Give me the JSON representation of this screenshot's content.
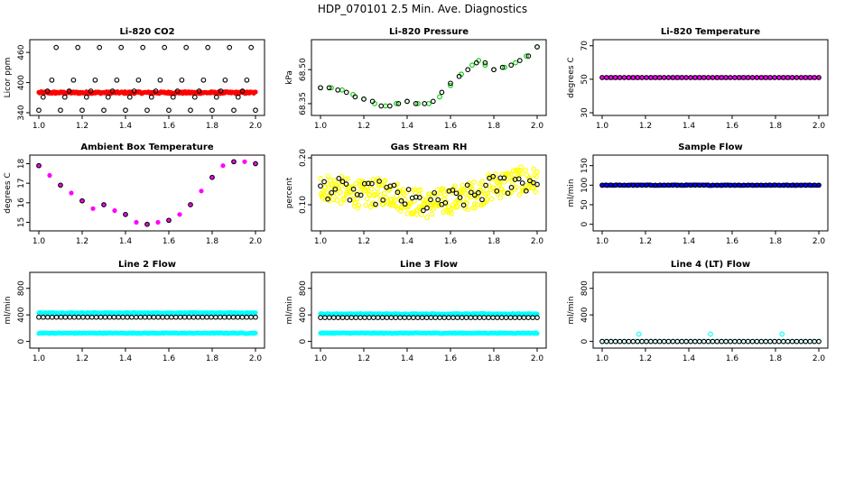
{
  "figure": {
    "title": "HDP_070101  2.5 Min. Ave. Diagnostics",
    "x_tick_labels": [
      "1.0",
      "1.2",
      "1.4",
      "1.6",
      "1.8",
      "2.0"
    ]
  },
  "chart_data": [
    {
      "type": "scatter",
      "title": "Li-820 CO2",
      "ylabel": "Licor ppm",
      "xlim": [
        1.0,
        2.0
      ],
      "ylim": [
        340,
        480
      ],
      "yticks": [
        340,
        400,
        460
      ],
      "grid": false,
      "series": [
        {
          "color": "#ff0000",
          "marker": "filled-circle",
          "baseline": 380,
          "noise": 2,
          "n": 260
        },
        {
          "color": "#000000",
          "marker": "open-circle",
          "x": [
            1.0,
            1.02,
            1.04,
            1.06,
            1.08,
            1.1,
            1.12,
            1.14,
            1.16,
            1.18,
            1.2,
            1.22,
            1.24,
            1.26,
            1.28,
            1.3,
            1.32,
            1.34,
            1.36,
            1.38,
            1.4,
            1.42,
            1.44,
            1.46,
            1.48,
            1.5,
            1.52,
            1.54,
            1.56,
            1.58,
            1.6,
            1.62,
            1.64,
            1.66,
            1.68,
            1.7,
            1.72,
            1.74,
            1.76,
            1.78,
            1.8,
            1.82,
            1.84,
            1.86,
            1.88,
            1.9,
            1.92,
            1.94,
            1.96,
            1.98,
            2.0
          ],
          "y": [
            345,
            371,
            383,
            405,
            470,
            345,
            371,
            383,
            405,
            470,
            345,
            371,
            383,
            405,
            470,
            345,
            371,
            383,
            405,
            470,
            345,
            371,
            383,
            405,
            470,
            345,
            371,
            383,
            405,
            470,
            345,
            371,
            383,
            405,
            470,
            345,
            371,
            383,
            405,
            470,
            345,
            371,
            383,
            405,
            470,
            345,
            371,
            383,
            405,
            470,
            345
          ]
        }
      ]
    },
    {
      "type": "scatter",
      "title": "Li-820 Pressure",
      "ylabel": "kPa",
      "xlim": [
        1.0,
        2.0
      ],
      "ylim": [
        68.31,
        68.62
      ],
      "yticks": [
        68.35,
        68.5
      ],
      "ytick_labels": [
        "68.35",
        "68.50"
      ],
      "grid": false,
      "series": [
        {
          "color": "#00cc00",
          "marker": "open-circle",
          "x": [
            1.0,
            1.05,
            1.1,
            1.15,
            1.2,
            1.25,
            1.3,
            1.35,
            1.4,
            1.45,
            1.5,
            1.55,
            1.6,
            1.65,
            1.7,
            1.73,
            1.76,
            1.8,
            1.85,
            1.9,
            1.95,
            2.0
          ],
          "y": [
            68.42,
            68.42,
            68.41,
            68.39,
            68.37,
            68.35,
            68.34,
            68.35,
            68.36,
            68.35,
            68.35,
            68.38,
            68.43,
            68.48,
            68.52,
            68.54,
            68.52,
            68.5,
            68.51,
            68.53,
            68.56,
            68.6
          ]
        },
        {
          "color": "#000000",
          "marker": "open-circle",
          "x": [
            1.0,
            1.04,
            1.08,
            1.12,
            1.16,
            1.2,
            1.24,
            1.28,
            1.32,
            1.36,
            1.4,
            1.44,
            1.48,
            1.52,
            1.56,
            1.6,
            1.64,
            1.68,
            1.72,
            1.76,
            1.8,
            1.84,
            1.88,
            1.92,
            1.96,
            2.0
          ],
          "y": [
            68.42,
            68.42,
            68.41,
            68.4,
            68.38,
            68.37,
            68.36,
            68.34,
            68.34,
            68.35,
            68.36,
            68.35,
            68.35,
            68.36,
            68.4,
            68.44,
            68.47,
            68.5,
            68.53,
            68.53,
            68.5,
            68.51,
            68.52,
            68.54,
            68.56,
            68.6
          ]
        }
      ]
    },
    {
      "type": "scatter",
      "title": "Li-820 Temperature",
      "ylabel": "degrees C",
      "xlim": [
        1.0,
        2.0
      ],
      "ylim": [
        30,
        72
      ],
      "yticks": [
        30,
        50,
        70
      ],
      "grid": false,
      "series": [
        {
          "color": "#ff00ff",
          "marker": "filled-circle",
          "baseline": 51,
          "noise": 0,
          "n": 60
        },
        {
          "color": "#000000",
          "marker": "open-circle",
          "baseline": 51,
          "noise": 0,
          "n": 50
        }
      ]
    },
    {
      "type": "scatter",
      "title": "Ambient Box Temperature",
      "ylabel": "degrees C",
      "xlim": [
        1.0,
        2.0
      ],
      "ylim": [
        14.7,
        18.3
      ],
      "yticks": [
        15,
        16,
        17,
        18
      ],
      "grid": false,
      "series": [
        {
          "color": "#ff00ff",
          "marker": "filled-circle",
          "x": [
            1.0,
            1.05,
            1.1,
            1.15,
            1.2,
            1.25,
            1.3,
            1.35,
            1.4,
            1.45,
            1.5,
            1.55,
            1.6,
            1.65,
            1.7,
            1.75,
            1.8,
            1.85,
            1.9,
            1.95,
            2.0
          ],
          "y": [
            17.9,
            17.4,
            16.9,
            16.5,
            16.1,
            15.7,
            15.9,
            15.6,
            15.4,
            15.0,
            14.9,
            15.0,
            15.1,
            15.4,
            15.9,
            16.6,
            17.3,
            17.9,
            18.1,
            18.1,
            18.0
          ]
        },
        {
          "color": "#000000",
          "marker": "open-circle",
          "x": [
            1.0,
            1.1,
            1.2,
            1.3,
            1.4,
            1.5,
            1.6,
            1.7,
            1.8,
            1.9,
            2.0
          ],
          "y": [
            17.9,
            16.9,
            16.1,
            15.9,
            15.4,
            14.9,
            15.1,
            15.9,
            17.3,
            18.1,
            18.0
          ]
        }
      ]
    },
    {
      "type": "scatter",
      "title": "Gas Stream RH",
      "ylabel": "percent",
      "xlim": [
        1.0,
        2.0
      ],
      "ylim": [
        0.05,
        0.2
      ],
      "yticks": [
        0.1,
        0.2
      ],
      "ytick_labels": [
        "0.10",
        "0.20"
      ],
      "grid": false,
      "series": [
        {
          "color": "#ffff00",
          "marker": "open-circle",
          "x": [
            1.0,
            1.1,
            1.2,
            1.3,
            1.4,
            1.5,
            1.6,
            1.7,
            1.8,
            1.9,
            2.0
          ],
          "y": [
            0.14,
            0.13,
            0.12,
            0.13,
            0.11,
            0.1,
            0.11,
            0.12,
            0.14,
            0.15,
            0.15
          ],
          "noise": 0.03,
          "n": 320
        },
        {
          "color": "#000000",
          "marker": "open-circle",
          "x": [
            1.0,
            1.1,
            1.2,
            1.3,
            1.4,
            1.5,
            1.6,
            1.7,
            1.8,
            1.9,
            2.0
          ],
          "y": [
            0.14,
            0.13,
            0.12,
            0.13,
            0.11,
            0.1,
            0.11,
            0.12,
            0.14,
            0.15,
            0.15
          ],
          "noise": 0.025,
          "n": 60
        }
      ]
    },
    {
      "type": "scatter",
      "title": "Sample Flow",
      "ylabel": "ml/min",
      "xlim": [
        1.0,
        2.0
      ],
      "ylim": [
        -10,
        170
      ],
      "yticks": [
        0,
        50,
        100,
        150
      ],
      "grid": false,
      "series": [
        {
          "color": "#0000ff",
          "marker": "filled-circle",
          "baseline": 100,
          "noise": 1,
          "n": 120
        },
        {
          "color": "#000000",
          "marker": "open-circle",
          "baseline": 100,
          "noise": 0,
          "n": 50
        }
      ]
    },
    {
      "type": "scatter",
      "title": "Line 2 Flow",
      "ylabel": "ml/min",
      "xlim": [
        1.0,
        2.0
      ],
      "ylim": [
        -60,
        1000
      ],
      "yticks": [
        0,
        400,
        800
      ],
      "grid": false,
      "series": [
        {
          "color": "#00ffff",
          "marker": "filled-circle",
          "baseline": 430,
          "noise": 6,
          "n": 200
        },
        {
          "color": "#00ffff",
          "marker": "filled-circle",
          "baseline": 125,
          "noise": 6,
          "n": 200
        },
        {
          "color": "#000000",
          "marker": "open-circle",
          "baseline": 365,
          "noise": 0,
          "n": 50
        }
      ]
    },
    {
      "type": "scatter",
      "title": "Line 3 Flow",
      "ylabel": "ml/min",
      "xlim": [
        1.0,
        2.0
      ],
      "ylim": [
        -60,
        1000
      ],
      "yticks": [
        0,
        400,
        800
      ],
      "grid": false,
      "series": [
        {
          "color": "#00ffff",
          "marker": "filled-circle",
          "baseline": 415,
          "noise": 6,
          "n": 200
        },
        {
          "color": "#00ffff",
          "marker": "filled-circle",
          "baseline": 125,
          "noise": 6,
          "n": 200
        },
        {
          "color": "#000000",
          "marker": "open-circle",
          "baseline": 360,
          "noise": 0,
          "n": 50
        }
      ]
    },
    {
      "type": "scatter",
      "title": "Line 4 (LT) Flow",
      "ylabel": "ml/min",
      "xlim": [
        1.0,
        2.0
      ],
      "ylim": [
        -60,
        1000
      ],
      "yticks": [
        0,
        400,
        800
      ],
      "grid": false,
      "series": [
        {
          "color": "#00ffff",
          "marker": "open-circle",
          "baseline": 0,
          "noise": 0,
          "n": 50
        },
        {
          "color": "#00ffff",
          "marker": "open-circle",
          "x": [
            1.17,
            1.5,
            1.83
          ],
          "y": [
            110,
            110,
            110
          ]
        },
        {
          "color": "#000000",
          "marker": "open-circle",
          "baseline": 0,
          "noise": 0,
          "n": 50
        }
      ]
    }
  ]
}
